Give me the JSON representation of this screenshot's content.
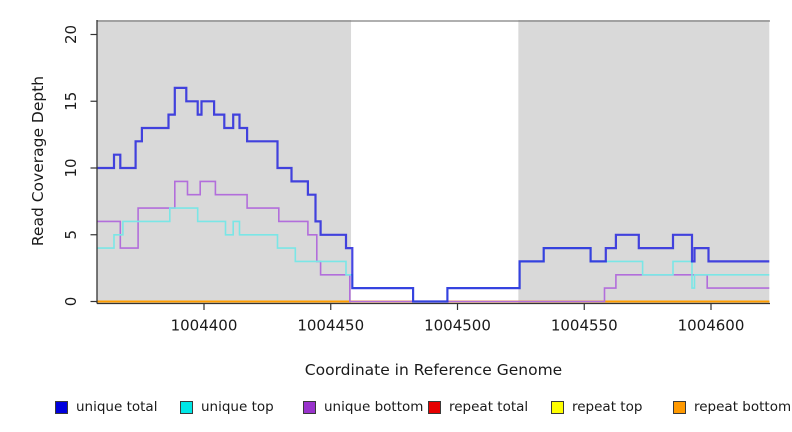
{
  "figure": {
    "background": "#ffffff",
    "plot_background": "#d9d9d9",
    "axis_color": "#333333",
    "top_border_color": "#808080"
  },
  "x_axis": {
    "label": "Coordinate in Reference Genome",
    "ticks": [
      1004400,
      1004450,
      1004500,
      1004550,
      1004600
    ],
    "range": [
      1004358,
      1004623
    ]
  },
  "y_axis": {
    "label": "Read Coverage Depth",
    "ticks": [
      0,
      5,
      10,
      15,
      20
    ],
    "range": [
      0,
      21
    ]
  },
  "legend": {
    "items": [
      {
        "label": "unique total",
        "color": "#0000dd"
      },
      {
        "label": "unique top",
        "color": "#00e6e6"
      },
      {
        "label": "unique bottom",
        "color": "#9933cc"
      },
      {
        "label": "repeat total",
        "color": "#e60000"
      },
      {
        "label": "repeat top",
        "color": "#ffff00"
      },
      {
        "label": "repeat bottom",
        "color": "#ff9900"
      }
    ]
  },
  "chart_data": {
    "type": "line",
    "style": "step",
    "title": "",
    "xlabel": "Coordinate in Reference Genome",
    "ylabel": "Read Coverage Depth",
    "xlim": [
      1004358,
      1004623
    ],
    "ylim": [
      0,
      21
    ],
    "grid": false,
    "legend_position": "bottom",
    "shaded_regions": [
      {
        "x0": 1004358,
        "x1": 1004458,
        "color": "#d9d9d9"
      },
      {
        "x0": 1004524,
        "x1": 1004623,
        "color": "#d9d9d9"
      }
    ],
    "series": [
      {
        "name": "repeat total",
        "color": "#e60000",
        "width": 1.5,
        "opacity": 1,
        "points": [
          [
            1004358,
            0
          ],
          [
            1004623,
            0
          ]
        ]
      },
      {
        "name": "repeat top",
        "color": "#ffff00",
        "width": 1.5,
        "opacity": 1,
        "points": [
          [
            1004358,
            0
          ],
          [
            1004623,
            0
          ]
        ]
      },
      {
        "name": "repeat bottom",
        "color": "#ff9d00",
        "width": 2,
        "opacity": 1,
        "points": [
          [
            1004358,
            0
          ],
          [
            1004623,
            0
          ]
        ]
      },
      {
        "name": "unique bottom",
        "color": "#b26edb",
        "width": 1.6,
        "opacity": 1,
        "points": [
          [
            1004358,
            6
          ],
          [
            1004367,
            4
          ],
          [
            1004374,
            7
          ],
          [
            1004388.5,
            9
          ],
          [
            1004393.5,
            8
          ],
          [
            1004398.5,
            9
          ],
          [
            1004404.5,
            8
          ],
          [
            1004417,
            7
          ],
          [
            1004429.5,
            6
          ],
          [
            1004441,
            5
          ],
          [
            1004444.5,
            3
          ],
          [
            1004446,
            2
          ],
          [
            1004457.5,
            0
          ],
          [
            1004558,
            1
          ],
          [
            1004562.5,
            2
          ],
          [
            1004598.5,
            1
          ],
          [
            1004623,
            1
          ]
        ]
      },
      {
        "name": "unique top",
        "color": "#7ae6e6",
        "width": 1.6,
        "opacity": 1,
        "points": [
          [
            1004358,
            4
          ],
          [
            1004364.5,
            5
          ],
          [
            1004368,
            6
          ],
          [
            1004386.5,
            7
          ],
          [
            1004397.5,
            6
          ],
          [
            1004408.5,
            5
          ],
          [
            1004411.5,
            6
          ],
          [
            1004414,
            5
          ],
          [
            1004429,
            4
          ],
          [
            1004436,
            3
          ],
          [
            1004456,
            2
          ],
          [
            1004458.5,
            1
          ],
          [
            1004482.5,
            0
          ],
          [
            1004496,
            1
          ],
          [
            1004524.5,
            3
          ],
          [
            1004534,
            4
          ],
          [
            1004552.5,
            3
          ],
          [
            1004573,
            2
          ],
          [
            1004585,
            3
          ],
          [
            1004592.5,
            1
          ],
          [
            1004593.5,
            2
          ],
          [
            1004623,
            2
          ]
        ]
      },
      {
        "name": "unique total",
        "color": "#2626dd",
        "width": 2.2,
        "opacity": 0.85,
        "points": [
          [
            1004358,
            10
          ],
          [
            1004364.5,
            11
          ],
          [
            1004367,
            10
          ],
          [
            1004373,
            12
          ],
          [
            1004375.5,
            13
          ],
          [
            1004386,
            14
          ],
          [
            1004388.5,
            16
          ],
          [
            1004393,
            15
          ],
          [
            1004397.5,
            14
          ],
          [
            1004399,
            15
          ],
          [
            1004404,
            14
          ],
          [
            1004408,
            13
          ],
          [
            1004411.5,
            14
          ],
          [
            1004414,
            13
          ],
          [
            1004417,
            12
          ],
          [
            1004429,
            10
          ],
          [
            1004434.5,
            9
          ],
          [
            1004441,
            8
          ],
          [
            1004444,
            6
          ],
          [
            1004446,
            5
          ],
          [
            1004456,
            4
          ],
          [
            1004458.5,
            1
          ],
          [
            1004482.5,
            0
          ],
          [
            1004496,
            1
          ],
          [
            1004524.5,
            3
          ],
          [
            1004534,
            4
          ],
          [
            1004552.5,
            3
          ],
          [
            1004558.5,
            4
          ],
          [
            1004562.5,
            5
          ],
          [
            1004571.5,
            4
          ],
          [
            1004585,
            5
          ],
          [
            1004592.5,
            3
          ],
          [
            1004593.5,
            4
          ],
          [
            1004599,
            3
          ],
          [
            1004623,
            3
          ]
        ]
      }
    ]
  }
}
